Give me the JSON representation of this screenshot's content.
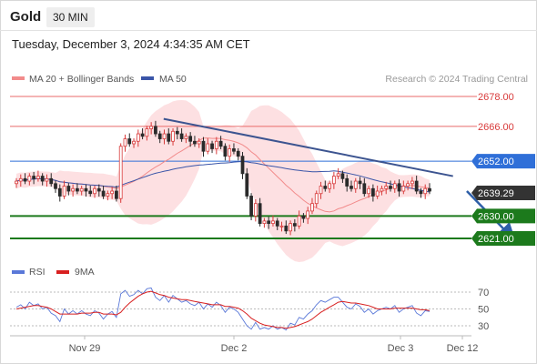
{
  "header": {
    "instrument": "Gold",
    "timeframe": "30 MIN",
    "datetime": "Tuesday, December 3, 2024 4:34:35 AM CET"
  },
  "legend": {
    "ma20": "MA 20 + Bollinger Bands",
    "ma50": "MA 50",
    "rsi": "RSI",
    "ma9": "9MA"
  },
  "credit": "Research © 2024 Trading Central",
  "colors": {
    "up": "#d83a3a",
    "down": "#2a2a2a",
    "ma20": "#f28b8b",
    "band_fill": "#fcd5d8",
    "ma50": "#3a55a8",
    "trendline": "#3c5490",
    "support": "#1c7a1c",
    "resistance": "#e86a6a",
    "pivot": "#2f6fd8",
    "current": "#333333",
    "rsi": "#5a78d8",
    "rsi_ma": "#d82020"
  },
  "chart_data": [
    {
      "type": "candlestick",
      "title": "Gold",
      "x_labels": [
        "Nov 29",
        "Dec 2",
        "Dec 3",
        "Dec 12"
      ],
      "ylim": [
        2610,
        2685
      ],
      "price_levels": [
        {
          "value": 2678.0,
          "label": "2678.00",
          "role": "resistance"
        },
        {
          "value": 2666.0,
          "label": "2666.00",
          "role": "resistance"
        },
        {
          "value": 2652.0,
          "label": "2652.00",
          "role": "pivot"
        },
        {
          "value": 2639.29,
          "label": "2639.29",
          "role": "current"
        },
        {
          "value": 2630.0,
          "label": "2630.00",
          "role": "support"
        },
        {
          "value": 2621.0,
          "label": "2621.00",
          "role": "support"
        }
      ],
      "trendline": [
        [
          0.333,
          2669
        ],
        [
          0.96,
          2646
        ]
      ],
      "forecast_arrow": [
        [
          0.99,
          2640
        ],
        [
          1.09,
          2621
        ]
      ],
      "close": [
        2644,
        2645,
        2644,
        2646,
        2645,
        2646,
        2644,
        2645,
        2643,
        2641,
        2638,
        2642,
        2640,
        2641,
        2640,
        2641,
        2640,
        2639,
        2641,
        2640,
        2638,
        2639,
        2640,
        2637,
        2658,
        2661,
        2659,
        2660,
        2663,
        2662,
        2665,
        2666,
        2663,
        2661,
        2663,
        2660,
        2664,
        2663,
        2661,
        2662,
        2660,
        2659,
        2660,
        2656,
        2659,
        2657,
        2660,
        2658,
        2654,
        2657,
        2656,
        2654,
        2647,
        2638,
        2630,
        2635,
        2627,
        2628,
        2627,
        2628,
        2626,
        2626,
        2624,
        2627,
        2626,
        2630,
        2629,
        2632,
        2635,
        2639,
        2642,
        2641,
        2643,
        2646,
        2647,
        2645,
        2642,
        2641,
        2644,
        2643,
        2639,
        2641,
        2638,
        2640,
        2641,
        2642,
        2641,
        2643,
        2640,
        2642,
        2643,
        2644,
        2640,
        2639,
        2641,
        2640
      ],
      "rsi": {
        "levels": [
          70,
          50,
          30
        ],
        "rsi": [
          52,
          55,
          50,
          58,
          54,
          56,
          50,
          52,
          45,
          42,
          35,
          50,
          44,
          48,
          44,
          48,
          44,
          42,
          48,
          45,
          38,
          44,
          47,
          40,
          68,
          72,
          65,
          67,
          72,
          68,
          74,
          75,
          64,
          60,
          66,
          58,
          66,
          62,
          58,
          60,
          56,
          54,
          58,
          50,
          56,
          52,
          58,
          54,
          46,
          52,
          50,
          46,
          38,
          30,
          26,
          34,
          26,
          28,
          26,
          30,
          26,
          28,
          25,
          33,
          31,
          40,
          38,
          44,
          48,
          55,
          60,
          58,
          61,
          64,
          64,
          58,
          52,
          50,
          56,
          53,
          46,
          50,
          44,
          48,
          50,
          52,
          50,
          54,
          46,
          50,
          52,
          54,
          45,
          42,
          48,
          47
        ],
        "ma9": [
          50,
          51,
          52,
          53,
          54,
          54,
          53,
          52,
          50,
          47,
          44,
          44,
          44,
          44,
          44,
          45,
          45,
          45,
          46,
          46,
          44,
          44,
          44,
          43,
          46,
          52,
          57,
          61,
          65,
          68,
          70,
          71,
          69,
          67,
          66,
          64,
          63,
          62,
          61,
          61,
          60,
          59,
          58,
          57,
          56,
          55,
          55,
          55,
          53,
          53,
          52,
          51,
          48,
          44,
          39,
          36,
          33,
          31,
          30,
          29,
          28,
          28,
          27,
          28,
          29,
          31,
          33,
          35,
          38,
          42,
          46,
          49,
          52,
          55,
          58,
          59,
          58,
          57,
          57,
          56,
          55,
          54,
          52,
          50,
          50,
          50,
          50,
          51,
          51,
          51,
          51,
          51,
          50,
          49,
          49,
          48
        ]
      }
    }
  ]
}
